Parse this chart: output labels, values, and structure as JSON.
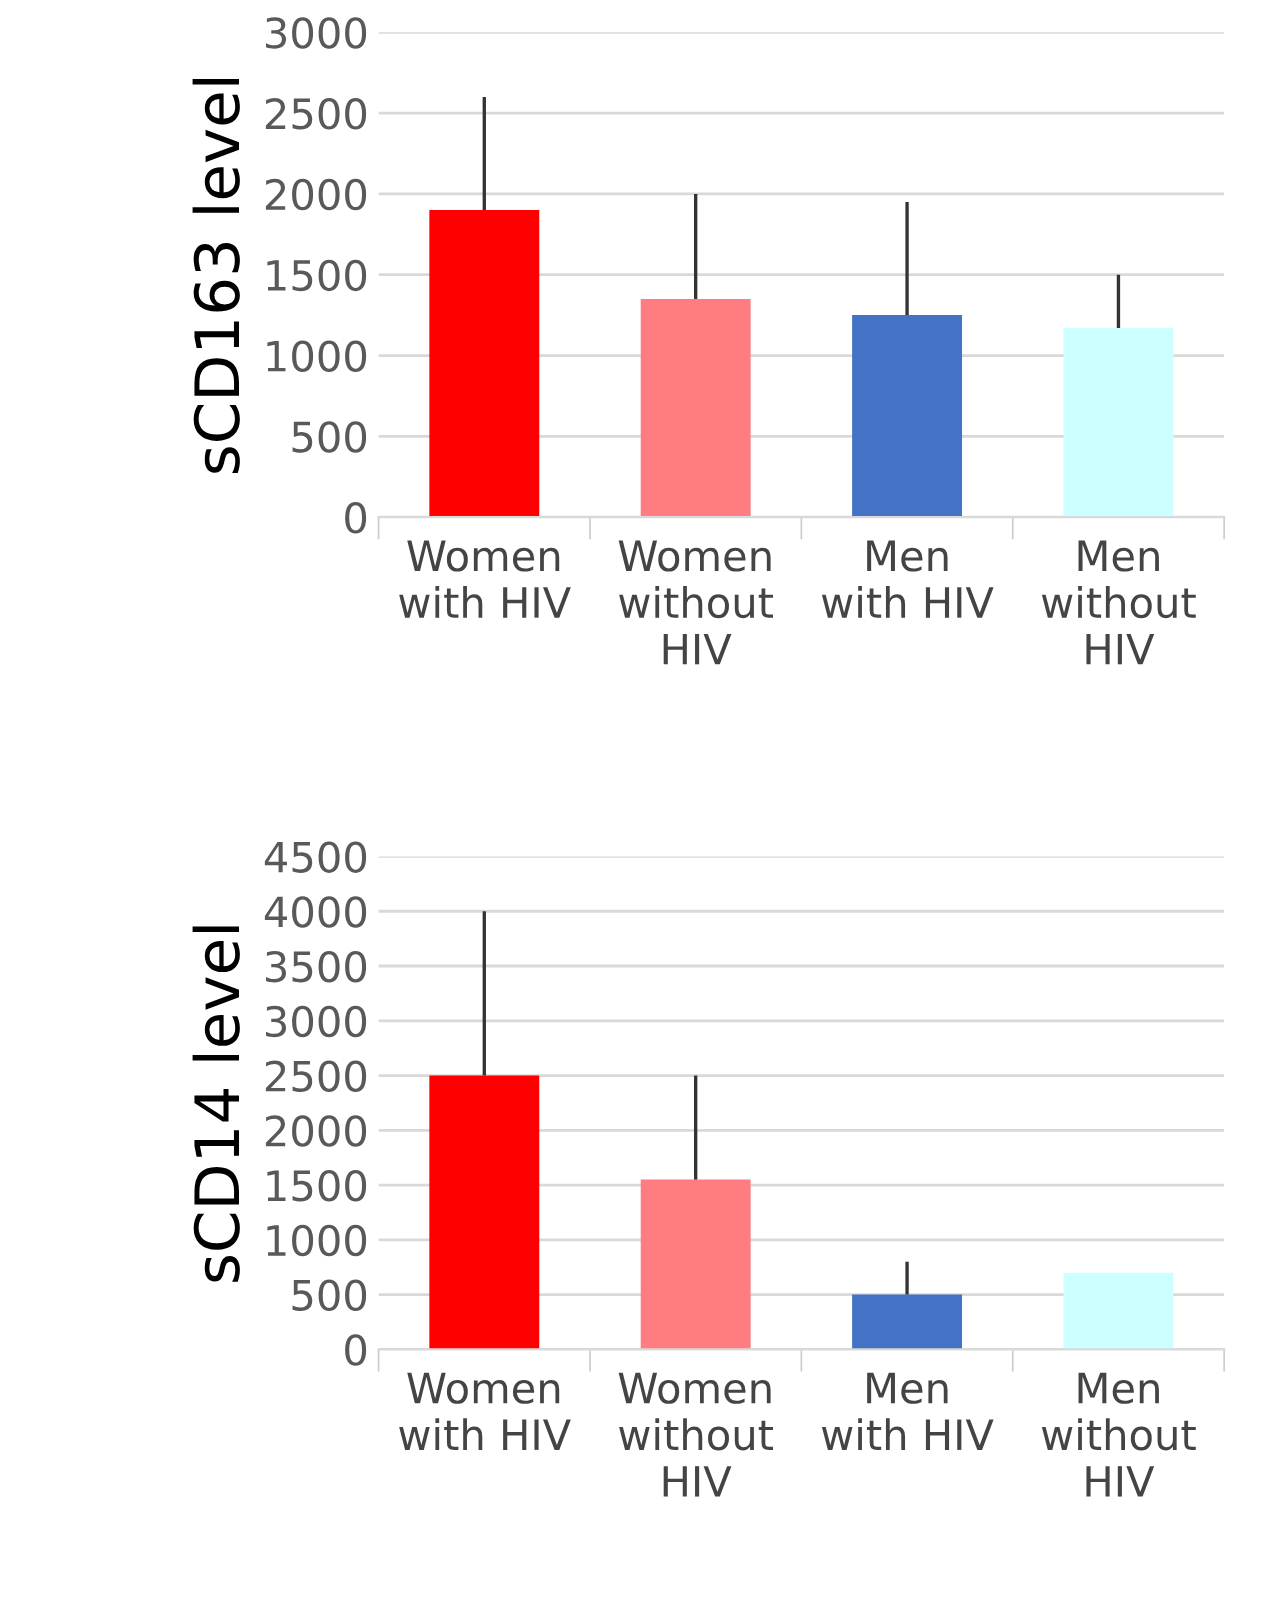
{
  "chart_data": [
    {
      "type": "bar",
      "ylabel": "sCD163 level",
      "categories": [
        "Women\nwith HIV",
        "Women\nwithout\nHIV",
        "Men\nwith HIV",
        "Men\nwithout\nHIV"
      ],
      "values": [
        1900,
        1350,
        1250,
        1170
      ],
      "colors": [
        "#ff0000",
        "#ff7c80",
        "#4472c4",
        "#ccffff"
      ],
      "errors": [
        [
          1900,
          2600
        ],
        [
          1350,
          2000
        ],
        [
          1250,
          1950
        ],
        [
          1170,
          1500
        ]
      ],
      "ylim": [
        0,
        3000
      ],
      "yticks": [
        0,
        500,
        1000,
        1500,
        2000,
        2500,
        3000
      ],
      "grid": "y"
    },
    {
      "type": "bar",
      "ylabel": "sCD14 level",
      "categories": [
        "Women\nwith HIV",
        "Women\nwithout\nHIV",
        "Men\nwith HIV",
        "Men\nwithout\nHIV"
      ],
      "values": [
        2500,
        1550,
        500,
        700
      ],
      "colors": [
        "#ff0000",
        "#ff7c80",
        "#4472c4",
        "#ccffff"
      ],
      "errors": [
        [
          2500,
          4000
        ],
        [
          1550,
          2500
        ],
        [
          500,
          800
        ],
        null
      ],
      "ylim": [
        0,
        4500
      ],
      "yticks": [
        0,
        500,
        1000,
        1500,
        2000,
        2500,
        3000,
        3500,
        4000,
        4500
      ],
      "grid": "y"
    }
  ]
}
